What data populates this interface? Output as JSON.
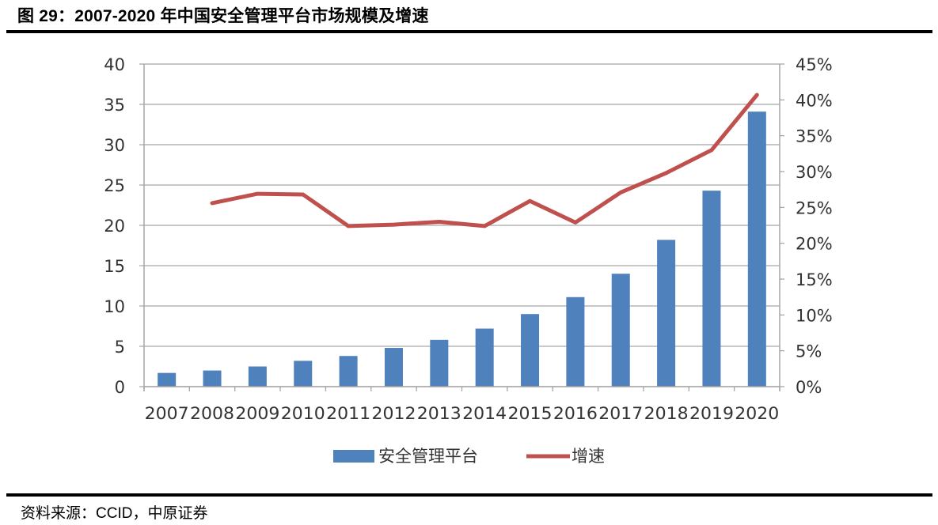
{
  "figure": {
    "title": "图 29：2007-2020 年中国安全管理平台市场规模及增速",
    "source": "资料来源：CCID，中原证券"
  },
  "legend": {
    "bar_label": "安全管理平台",
    "line_label": "增速"
  },
  "colors": {
    "bar": "#4F81BD",
    "line": "#C0504D",
    "grid": "#A6A6A6",
    "axis": "#A6A6A6",
    "text": "#333333"
  },
  "chart_data": {
    "type": "bar",
    "combo": "bar+line (dual axis)",
    "title": "2007-2020 年中国安全管理平台市场规模及增速",
    "xlabel": "",
    "ylabel": "",
    "categories": [
      "2007",
      "2008",
      "2009",
      "2010",
      "2011",
      "2012",
      "2013",
      "2014",
      "2015",
      "2016",
      "2017",
      "2018",
      "2019",
      "2020"
    ],
    "series": [
      {
        "name": "安全管理平台",
        "type": "bar",
        "axis": "left",
        "values": [
          1.7,
          2.0,
          2.5,
          3.2,
          3.8,
          4.8,
          5.8,
          7.2,
          9.0,
          11.1,
          14.0,
          18.2,
          24.3,
          34.1
        ]
      },
      {
        "name": "增速",
        "type": "line",
        "axis": "right",
        "unit": "%",
        "values": [
          null,
          25.6,
          26.9,
          26.8,
          22.4,
          22.6,
          23.0,
          22.4,
          25.9,
          22.9,
          27.1,
          29.8,
          33.0,
          40.7
        ]
      }
    ],
    "left_axis": {
      "ylim": [
        0,
        40
      ],
      "ticks": [
        "0",
        "5",
        "10",
        "15",
        "20",
        "25",
        "30",
        "35",
        "40"
      ]
    },
    "right_axis": {
      "ylim": [
        0,
        45
      ],
      "ticks": [
        "0%",
        "5%",
        "10%",
        "15%",
        "20%",
        "25%",
        "30%",
        "35%",
        "40%",
        "45%"
      ]
    },
    "grid": true,
    "legend_position": "bottom"
  }
}
